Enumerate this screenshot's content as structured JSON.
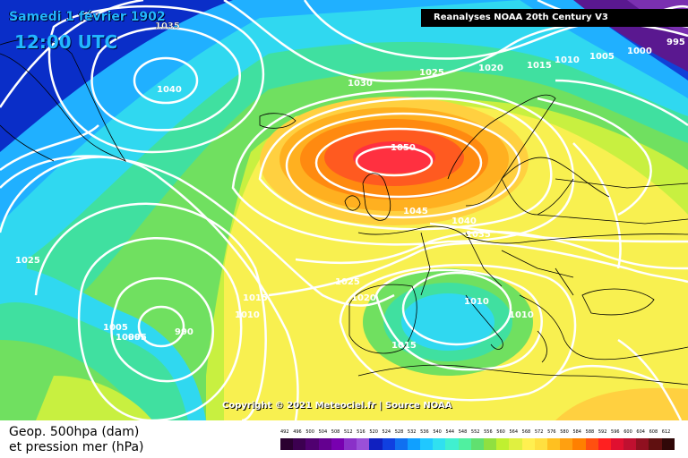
{
  "header": {
    "date": "Samedi 1 février 1902",
    "time": "12:00 UTC",
    "source_title": "Reanalyses NOAA 20th Century V3",
    "copyright": "Copyright © 2021 Meteociel.fr | Source NOAA"
  },
  "legend": {
    "line1": "Geop. 500hpa (dam)",
    "line2": "et pression mer (hPa)",
    "scale_values": [
      "492",
      "496",
      "500",
      "504",
      "508",
      "512",
      "516",
      "520",
      "524",
      "528",
      "532",
      "536",
      "540",
      "544",
      "548",
      "552",
      "556",
      "560",
      "564",
      "568",
      "572",
      "576",
      "580",
      "584",
      "588",
      "592",
      "596",
      "600",
      "604",
      "608",
      "612"
    ],
    "scale_colors": [
      "#2a0030",
      "#3c0050",
      "#500070",
      "#640090",
      "#7800b0",
      "#8a30c8",
      "#9a50d8",
      "#1020c0",
      "#1040e0",
      "#1070f0",
      "#10a0ff",
      "#20c8ff",
      "#30e0f0",
      "#40f0d0",
      "#50f0a0",
      "#60e070",
      "#90e040",
      "#c0f030",
      "#e0f040",
      "#fff050",
      "#ffe040",
      "#ffc020",
      "#ffa010",
      "#ff8000",
      "#ff5010",
      "#ff2020",
      "#e01030",
      "#c01030",
      "#901020",
      "#601010",
      "#300808"
    ],
    "colors": {
      "sea": "#0040c0",
      "title_blue": "#22b7ff",
      "isobar": "#ffffff"
    }
  },
  "isobar_labels": [
    "1035",
    "1040",
    "1030",
    "1025",
    "1020",
    "1015",
    "1010",
    "1005",
    "1000",
    "995",
    "1050",
    "1045",
    "1040",
    "1035",
    "1025",
    "1020",
    "1010",
    "1010",
    "1015",
    "1025",
    "1015",
    "1010",
    "1005",
    "1000",
    "995",
    "990"
  ],
  "pressure_centers": [
    {
      "label": "1050",
      "type": "high"
    },
    {
      "label": "990",
      "type": "low"
    },
    {
      "label": "1010",
      "type": "low"
    },
    {
      "label": "1040",
      "type": "high"
    }
  ]
}
